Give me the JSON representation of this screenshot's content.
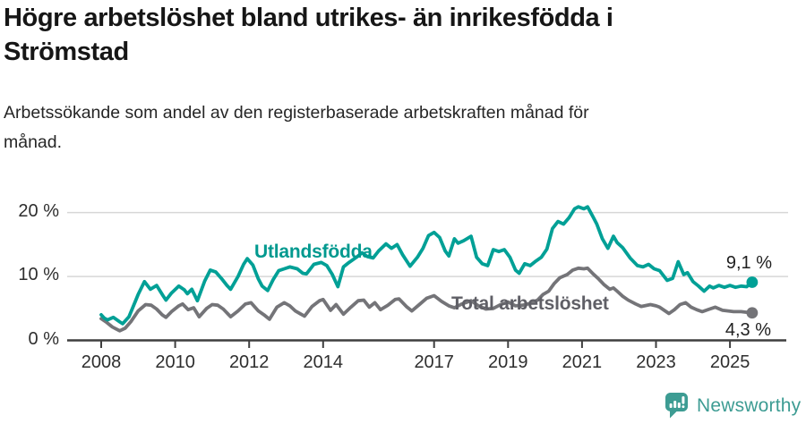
{
  "header": {
    "title_line1": "Högre arbetslöshet bland utrikes- än inrikesfödda i",
    "title_line2": "Strömstad",
    "subtitle_line1": "Arbetssökande som andel av den registerbaserade arbetskraften månad för",
    "subtitle_line2": "månad."
  },
  "chart_data": {
    "type": "line",
    "title": "Högre arbetslöshet bland utrikes- än inrikesfödda i Strömstad",
    "subtitle": "Arbetssökande som andel av den registerbaserade arbetskraften månad för månad.",
    "x_unit": "year (monthly data)",
    "xlim": [
      2007.6,
      2026.4
    ],
    "ylim": [
      0,
      22
    ],
    "grid": "horizontal",
    "legend_position": "inline-labels",
    "y_ticks": [
      {
        "value": 0,
        "label": "0 %"
      },
      {
        "value": 10,
        "label": "10 %"
      },
      {
        "value": 20,
        "label": "20 %"
      }
    ],
    "x_ticks": [
      {
        "value": 2008,
        "label": "2008"
      },
      {
        "value": 2010,
        "label": "2010"
      },
      {
        "value": 2012,
        "label": "2012"
      },
      {
        "value": 2014,
        "label": "2014"
      },
      {
        "value": 2017,
        "label": "2017"
      },
      {
        "value": 2019,
        "label": "2019"
      },
      {
        "value": 2021,
        "label": "2021"
      },
      {
        "value": 2023,
        "label": "2023"
      },
      {
        "value": 2025,
        "label": "2025"
      }
    ],
    "series": [
      {
        "name": "Utlandsfödda",
        "color": "#00a096",
        "label_color": "#00998f",
        "end_label": "9,1 %",
        "last_value": 9.1,
        "points": [
          [
            2008.0,
            4.0
          ],
          [
            2008.08,
            3.5
          ],
          [
            2008.17,
            3.2
          ],
          [
            2008.33,
            3.6
          ],
          [
            2008.5,
            2.9
          ],
          [
            2008.58,
            2.6
          ],
          [
            2008.75,
            3.7
          ],
          [
            2008.9,
            5.8
          ],
          [
            2009.0,
            7.2
          ],
          [
            2009.17,
            9.2
          ],
          [
            2009.33,
            8.0
          ],
          [
            2009.5,
            8.6
          ],
          [
            2009.67,
            7.0
          ],
          [
            2009.75,
            6.3
          ],
          [
            2009.9,
            7.4
          ],
          [
            2010.1,
            8.5
          ],
          [
            2010.25,
            7.9
          ],
          [
            2010.33,
            7.3
          ],
          [
            2010.45,
            8.0
          ],
          [
            2010.6,
            6.2
          ],
          [
            2010.8,
            9.3
          ],
          [
            2010.95,
            11.0
          ],
          [
            2011.1,
            10.7
          ],
          [
            2011.25,
            9.7
          ],
          [
            2011.4,
            8.6
          ],
          [
            2011.5,
            8.0
          ],
          [
            2011.7,
            10.0
          ],
          [
            2011.85,
            11.9
          ],
          [
            2011.95,
            12.8
          ],
          [
            2012.1,
            11.8
          ],
          [
            2012.25,
            9.6
          ],
          [
            2012.35,
            8.5
          ],
          [
            2012.5,
            7.8
          ],
          [
            2012.65,
            9.5
          ],
          [
            2012.8,
            10.9
          ],
          [
            2012.95,
            11.2
          ],
          [
            2013.1,
            11.5
          ],
          [
            2013.3,
            11.2
          ],
          [
            2013.45,
            10.5
          ],
          [
            2013.55,
            10.4
          ],
          [
            2013.75,
            11.9
          ],
          [
            2013.95,
            12.2
          ],
          [
            2014.1,
            11.7
          ],
          [
            2014.25,
            10.3
          ],
          [
            2014.4,
            8.4
          ],
          [
            2014.55,
            11.5
          ],
          [
            2014.7,
            12.2
          ],
          [
            2014.9,
            13.0
          ],
          [
            2015.05,
            13.7
          ],
          [
            2015.2,
            13.1
          ],
          [
            2015.35,
            12.9
          ],
          [
            2015.5,
            14.0
          ],
          [
            2015.7,
            15.1
          ],
          [
            2015.85,
            14.4
          ],
          [
            2016.0,
            15.0
          ],
          [
            2016.15,
            13.4
          ],
          [
            2016.35,
            11.6
          ],
          [
            2016.55,
            13.0
          ],
          [
            2016.7,
            14.4
          ],
          [
            2016.85,
            16.4
          ],
          [
            2017.0,
            16.9
          ],
          [
            2017.15,
            16.1
          ],
          [
            2017.3,
            14.0
          ],
          [
            2017.4,
            13.2
          ],
          [
            2017.55,
            15.9
          ],
          [
            2017.65,
            15.2
          ],
          [
            2017.8,
            15.6
          ],
          [
            2018.0,
            16.3
          ],
          [
            2018.15,
            13.0
          ],
          [
            2018.3,
            12.0
          ],
          [
            2018.45,
            11.7
          ],
          [
            2018.6,
            14.2
          ],
          [
            2018.75,
            13.9
          ],
          [
            2018.9,
            14.2
          ],
          [
            2019.05,
            13.0
          ],
          [
            2019.2,
            11.0
          ],
          [
            2019.3,
            10.5
          ],
          [
            2019.45,
            12.0
          ],
          [
            2019.6,
            11.7
          ],
          [
            2019.75,
            12.4
          ],
          [
            2019.9,
            13.0
          ],
          [
            2020.05,
            14.3
          ],
          [
            2020.2,
            17.5
          ],
          [
            2020.35,
            18.6
          ],
          [
            2020.5,
            18.2
          ],
          [
            2020.65,
            19.2
          ],
          [
            2020.8,
            20.6
          ],
          [
            2020.9,
            20.9
          ],
          [
            2021.05,
            20.6
          ],
          [
            2021.15,
            20.9
          ],
          [
            2021.3,
            19.3
          ],
          [
            2021.4,
            18.2
          ],
          [
            2021.55,
            15.9
          ],
          [
            2021.7,
            14.4
          ],
          [
            2021.85,
            16.3
          ],
          [
            2021.95,
            15.3
          ],
          [
            2022.1,
            14.5
          ],
          [
            2022.3,
            12.9
          ],
          [
            2022.5,
            11.7
          ],
          [
            2022.65,
            11.5
          ],
          [
            2022.8,
            11.9
          ],
          [
            2022.95,
            11.2
          ],
          [
            2023.1,
            10.9
          ],
          [
            2023.3,
            9.4
          ],
          [
            2023.45,
            9.7
          ],
          [
            2023.6,
            12.3
          ],
          [
            2023.75,
            10.3
          ],
          [
            2023.85,
            10.6
          ],
          [
            2024.0,
            9.2
          ],
          [
            2024.15,
            8.5
          ],
          [
            2024.3,
            7.7
          ],
          [
            2024.45,
            8.5
          ],
          [
            2024.55,
            8.2
          ],
          [
            2024.7,
            8.6
          ],
          [
            2024.85,
            8.3
          ],
          [
            2025.0,
            8.6
          ],
          [
            2025.15,
            8.3
          ],
          [
            2025.3,
            8.5
          ],
          [
            2025.45,
            8.4
          ],
          [
            2025.6,
            9.1
          ]
        ]
      },
      {
        "name": "Total arbetslöshet",
        "color": "#747478",
        "label_color": "#5f5f66",
        "end_label": "4,3 %",
        "last_value": 4.3,
        "points": [
          [
            2008.0,
            3.4
          ],
          [
            2008.15,
            2.8
          ],
          [
            2008.3,
            2.1
          ],
          [
            2008.5,
            1.5
          ],
          [
            2008.65,
            1.9
          ],
          [
            2008.8,
            2.9
          ],
          [
            2009.0,
            4.6
          ],
          [
            2009.2,
            5.6
          ],
          [
            2009.35,
            5.5
          ],
          [
            2009.5,
            4.9
          ],
          [
            2009.65,
            4.0
          ],
          [
            2009.75,
            3.6
          ],
          [
            2009.9,
            4.5
          ],
          [
            2010.1,
            5.4
          ],
          [
            2010.2,
            5.7
          ],
          [
            2010.35,
            4.8
          ],
          [
            2010.5,
            5.1
          ],
          [
            2010.65,
            3.7
          ],
          [
            2010.85,
            5.0
          ],
          [
            2011.0,
            5.6
          ],
          [
            2011.15,
            5.5
          ],
          [
            2011.3,
            4.9
          ],
          [
            2011.5,
            3.7
          ],
          [
            2011.7,
            4.6
          ],
          [
            2011.9,
            5.7
          ],
          [
            2012.05,
            5.9
          ],
          [
            2012.25,
            4.6
          ],
          [
            2012.4,
            4.0
          ],
          [
            2012.55,
            3.3
          ],
          [
            2012.75,
            5.2
          ],
          [
            2012.95,
            5.9
          ],
          [
            2013.1,
            5.4
          ],
          [
            2013.25,
            4.6
          ],
          [
            2013.4,
            4.1
          ],
          [
            2013.5,
            3.8
          ],
          [
            2013.7,
            5.3
          ],
          [
            2013.9,
            6.2
          ],
          [
            2014.0,
            6.4
          ],
          [
            2014.2,
            4.7
          ],
          [
            2014.35,
            5.6
          ],
          [
            2014.55,
            4.1
          ],
          [
            2014.75,
            5.2
          ],
          [
            2014.95,
            6.2
          ],
          [
            2015.1,
            6.3
          ],
          [
            2015.25,
            5.2
          ],
          [
            2015.4,
            5.9
          ],
          [
            2015.55,
            4.8
          ],
          [
            2015.75,
            5.5
          ],
          [
            2015.95,
            6.4
          ],
          [
            2016.05,
            6.5
          ],
          [
            2016.25,
            5.3
          ],
          [
            2016.4,
            4.6
          ],
          [
            2016.6,
            5.6
          ],
          [
            2016.8,
            6.6
          ],
          [
            2017.0,
            7.0
          ],
          [
            2017.2,
            6.1
          ],
          [
            2017.4,
            5.4
          ],
          [
            2017.55,
            5.1
          ],
          [
            2017.75,
            5.7
          ],
          [
            2018.0,
            6.2
          ],
          [
            2018.2,
            5.4
          ],
          [
            2018.4,
            4.9
          ],
          [
            2018.6,
            5.0
          ],
          [
            2018.8,
            5.6
          ],
          [
            2019.0,
            6.0
          ],
          [
            2019.2,
            5.4
          ],
          [
            2019.4,
            5.5
          ],
          [
            2019.6,
            5.8
          ],
          [
            2019.8,
            6.3
          ],
          [
            2019.95,
            7.2
          ],
          [
            2020.1,
            7.7
          ],
          [
            2020.25,
            8.9
          ],
          [
            2020.4,
            9.8
          ],
          [
            2020.6,
            10.3
          ],
          [
            2020.75,
            11.0
          ],
          [
            2020.9,
            11.3
          ],
          [
            2021.05,
            11.2
          ],
          [
            2021.15,
            11.3
          ],
          [
            2021.3,
            10.4
          ],
          [
            2021.45,
            9.6
          ],
          [
            2021.6,
            8.7
          ],
          [
            2021.75,
            8.0
          ],
          [
            2021.85,
            8.2
          ],
          [
            2021.95,
            7.7
          ],
          [
            2022.1,
            6.9
          ],
          [
            2022.25,
            6.3
          ],
          [
            2022.45,
            5.7
          ],
          [
            2022.6,
            5.3
          ],
          [
            2022.85,
            5.6
          ],
          [
            2023.0,
            5.4
          ],
          [
            2023.1,
            5.2
          ],
          [
            2023.35,
            4.2
          ],
          [
            2023.5,
            4.8
          ],
          [
            2023.65,
            5.6
          ],
          [
            2023.8,
            5.9
          ],
          [
            2023.95,
            5.2
          ],
          [
            2024.1,
            4.8
          ],
          [
            2024.25,
            4.5
          ],
          [
            2024.45,
            4.9
          ],
          [
            2024.6,
            5.2
          ],
          [
            2024.8,
            4.7
          ],
          [
            2024.95,
            4.6
          ],
          [
            2025.1,
            4.5
          ],
          [
            2025.3,
            4.5
          ],
          [
            2025.45,
            4.4
          ],
          [
            2025.6,
            4.3
          ]
        ]
      }
    ],
    "colors": {
      "grid": "#d7d7d7",
      "axis": "#3f3f3f",
      "tick_text": "#2e2e2e"
    }
  },
  "footer": {
    "brand": "Newsworthy",
    "brand_color": "#3d9c93",
    "logo_icon": "newsworthy-speech-bubble-bar-chart-icon"
  }
}
